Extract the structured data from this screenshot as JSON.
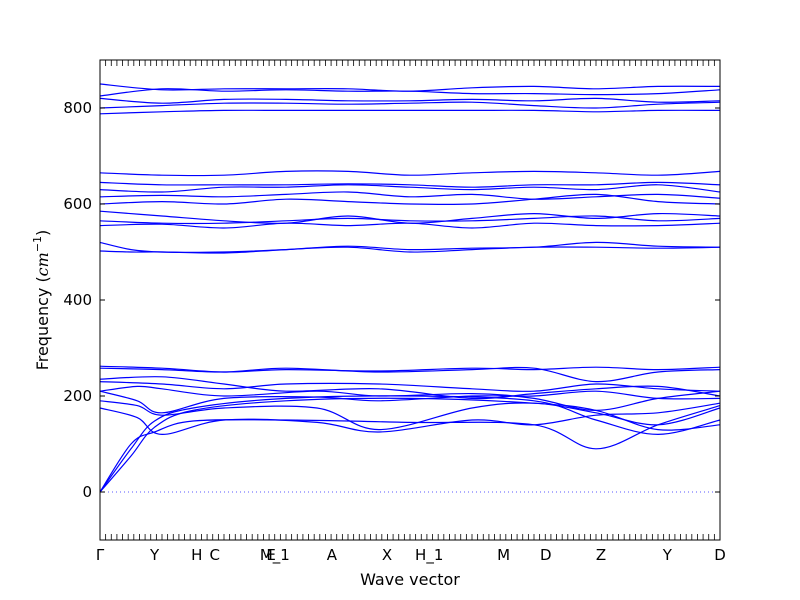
{
  "chart_data": {
    "type": "line",
    "xlabel": "Wave vector",
    "ylabel": "Frequency (cm⁻¹)",
    "ylabel_prefix": "Frequency (",
    "ylabel_unit": "cm",
    "ylabel_exp": "−1",
    "ylabel_suffix": ")",
    "ylim": [
      -100,
      900
    ],
    "yticks": [
      0,
      200,
      400,
      600,
      800
    ],
    "grid": false,
    "line_color": "#0000ff",
    "zero_line_color": "#5a5aff",
    "xlim": [
      0,
      1
    ],
    "high_symmetry_points": [
      {
        "label": "Γ",
        "x": 0.0
      },
      {
        "label": "Y",
        "x": 0.088
      },
      {
        "label": "H",
        "x": 0.156
      },
      {
        "label": "C",
        "x": 0.185
      },
      {
        "label": "E",
        "x": 0.276
      },
      {
        "label": "M_1",
        "x": 0.282
      },
      {
        "label": "A",
        "x": 0.374
      },
      {
        "label": "X",
        "x": 0.463
      },
      {
        "label": "H_1",
        "x": 0.531
      },
      {
        "label": "M",
        "x": 0.651
      },
      {
        "label": "D",
        "x": 0.719
      },
      {
        "label": "Z",
        "x": 0.808
      },
      {
        "label": "Y",
        "x": 0.915
      },
      {
        "label": "D",
        "x": 1.0
      }
    ],
    "series": [
      {
        "x": [
          0,
          0.05,
          0.088,
          0.15,
          0.3,
          0.5,
          0.7,
          0.8,
          0.9,
          1.0
        ],
        "y": [
          0,
          75,
          135,
          170,
          190,
          195,
          185,
          170,
          130,
          140
        ]
      },
      {
        "x": [
          0,
          0.05,
          0.088,
          0.15,
          0.3,
          0.5,
          0.7,
          0.8,
          0.9,
          1.0
        ],
        "y": [
          0,
          90,
          148,
          175,
          195,
          200,
          190,
          150,
          120,
          150
        ]
      },
      {
        "x": [
          0,
          0.05,
          0.088,
          0.15,
          0.3,
          0.5,
          0.7,
          0.8,
          0.9,
          1.0
        ],
        "y": [
          0,
          100,
          125,
          148,
          150,
          145,
          140,
          90,
          140,
          180
        ]
      },
      {
        "x": [
          0,
          0.06,
          0.1,
          0.2,
          0.35,
          0.45,
          0.6,
          0.7,
          0.8,
          0.9,
          1.0
        ],
        "y": [
          175,
          155,
          120,
          150,
          145,
          125,
          150,
          140,
          160,
          165,
          185
        ]
      },
      {
        "x": [
          0,
          0.06,
          0.1,
          0.2,
          0.35,
          0.45,
          0.6,
          0.7,
          0.8,
          0.9,
          1.0
        ],
        "y": [
          190,
          180,
          160,
          175,
          175,
          130,
          175,
          185,
          165,
          140,
          175
        ]
      },
      {
        "x": [
          0,
          0.06,
          0.1,
          0.2,
          0.35,
          0.45,
          0.6,
          0.7,
          0.8,
          0.9,
          1.0
        ],
        "y": [
          210,
          190,
          165,
          195,
          198,
          190,
          200,
          200,
          210,
          195,
          195
        ]
      },
      {
        "x": [
          0,
          0.06,
          0.1,
          0.2,
          0.35,
          0.45,
          0.6,
          0.7,
          0.8,
          0.9,
          1.0
        ],
        "y": [
          210,
          220,
          215,
          200,
          210,
          200,
          205,
          195,
          170,
          195,
          210
        ]
      },
      {
        "x": [
          0,
          0.1,
          0.2,
          0.3,
          0.45,
          0.6,
          0.7,
          0.8,
          0.9,
          1.0
        ],
        "y": [
          230,
          225,
          215,
          225,
          225,
          215,
          210,
          225,
          215,
          210
        ]
      },
      {
        "x": [
          0,
          0.1,
          0.2,
          0.3,
          0.45,
          0.6,
          0.7,
          0.8,
          0.9,
          1.0
        ],
        "y": [
          235,
          240,
          225,
          210,
          215,
          195,
          205,
          215,
          220,
          200
        ]
      },
      {
        "x": [
          0,
          0.1,
          0.2,
          0.3,
          0.45,
          0.6,
          0.7,
          0.8,
          0.9,
          1.0
        ],
        "y": [
          258,
          255,
          250,
          258,
          250,
          255,
          258,
          230,
          250,
          255
        ]
      },
      {
        "x": [
          0,
          0.1,
          0.2,
          0.3,
          0.45,
          0.6,
          0.7,
          0.8,
          0.9,
          1.0
        ],
        "y": [
          262,
          258,
          250,
          255,
          252,
          258,
          255,
          260,
          255,
          260
        ]
      },
      {
        "x": [
          0,
          0.05,
          0.1,
          0.2,
          0.3,
          0.4,
          0.5,
          0.6,
          0.7,
          0.8,
          0.9,
          1.0
        ],
        "y": [
          520,
          505,
          500,
          500,
          505,
          512,
          505,
          508,
          510,
          520,
          512,
          510
        ]
      },
      {
        "x": [
          0,
          0.05,
          0.1,
          0.2,
          0.3,
          0.4,
          0.5,
          0.6,
          0.7,
          0.8,
          0.9,
          1.0
        ],
        "y": [
          502,
          500,
          500,
          498,
          505,
          510,
          500,
          505,
          510,
          510,
          508,
          510
        ]
      },
      {
        "x": [
          0,
          0.1,
          0.2,
          0.3,
          0.4,
          0.5,
          0.6,
          0.7,
          0.8,
          0.9,
          1.0
        ],
        "y": [
          555,
          558,
          550,
          560,
          555,
          560,
          550,
          560,
          555,
          555,
          560
        ]
      },
      {
        "x": [
          0,
          0.1,
          0.2,
          0.3,
          0.4,
          0.5,
          0.6,
          0.7,
          0.8,
          0.9,
          1.0
        ],
        "y": [
          565,
          560,
          560,
          565,
          570,
          565,
          565,
          570,
          575,
          565,
          570
        ]
      },
      {
        "x": [
          0,
          0.1,
          0.2,
          0.3,
          0.4,
          0.5,
          0.6,
          0.7,
          0.8,
          0.9,
          1.0
        ],
        "y": [
          585,
          575,
          565,
          560,
          575,
          560,
          570,
          580,
          570,
          580,
          575
        ]
      },
      {
        "x": [
          0,
          0.1,
          0.2,
          0.3,
          0.4,
          0.5,
          0.6,
          0.7,
          0.8,
          0.9,
          1.0
        ],
        "y": [
          600,
          605,
          600,
          610,
          605,
          600,
          600,
          610,
          620,
          605,
          600
        ]
      },
      {
        "x": [
          0,
          0.1,
          0.2,
          0.3,
          0.4,
          0.5,
          0.6,
          0.7,
          0.8,
          0.9,
          1.0
        ],
        "y": [
          615,
          618,
          615,
          620,
          625,
          615,
          620,
          610,
          615,
          620,
          612
        ]
      },
      {
        "x": [
          0,
          0.1,
          0.2,
          0.3,
          0.4,
          0.5,
          0.6,
          0.7,
          0.8,
          0.9,
          1.0
        ],
        "y": [
          630,
          625,
          635,
          635,
          640,
          635,
          630,
          635,
          630,
          640,
          625
        ]
      },
      {
        "x": [
          0,
          0.1,
          0.2,
          0.3,
          0.4,
          0.5,
          0.6,
          0.7,
          0.8,
          0.9,
          1.0
        ],
        "y": [
          645,
          640,
          640,
          640,
          642,
          640,
          635,
          640,
          640,
          645,
          640
        ]
      },
      {
        "x": [
          0,
          0.1,
          0.2,
          0.3,
          0.4,
          0.5,
          0.6,
          0.7,
          0.8,
          0.9,
          1.0
        ],
        "y": [
          665,
          660,
          660,
          668,
          668,
          660,
          665,
          668,
          665,
          660,
          668
        ]
      },
      {
        "x": [
          0,
          0.1,
          0.2,
          0.3,
          0.4,
          0.5,
          0.6,
          0.7,
          0.8,
          0.9,
          1.0
        ],
        "y": [
          788,
          792,
          795,
          795,
          795,
          795,
          795,
          795,
          792,
          795,
          795
        ]
      },
      {
        "x": [
          0,
          0.1,
          0.2,
          0.3,
          0.4,
          0.5,
          0.6,
          0.7,
          0.8,
          0.9,
          1.0
        ],
        "y": [
          800,
          805,
          810,
          810,
          808,
          810,
          812,
          805,
          800,
          808,
          812
        ]
      },
      {
        "x": [
          0,
          0.1,
          0.2,
          0.3,
          0.4,
          0.5,
          0.6,
          0.7,
          0.8,
          0.9,
          1.0
        ],
        "y": [
          820,
          810,
          818,
          818,
          815,
          815,
          818,
          815,
          820,
          812,
          815
        ]
      },
      {
        "x": [
          0,
          0.1,
          0.2,
          0.3,
          0.4,
          0.5,
          0.6,
          0.7,
          0.8,
          0.9,
          1.0
        ],
        "y": [
          825,
          840,
          835,
          838,
          835,
          835,
          830,
          830,
          828,
          830,
          838
        ]
      },
      {
        "x": [
          0,
          0.1,
          0.2,
          0.3,
          0.4,
          0.5,
          0.6,
          0.7,
          0.8,
          0.9,
          1.0
        ],
        "y": [
          850,
          838,
          840,
          840,
          840,
          835,
          842,
          845,
          840,
          845,
          845
        ]
      }
    ]
  }
}
